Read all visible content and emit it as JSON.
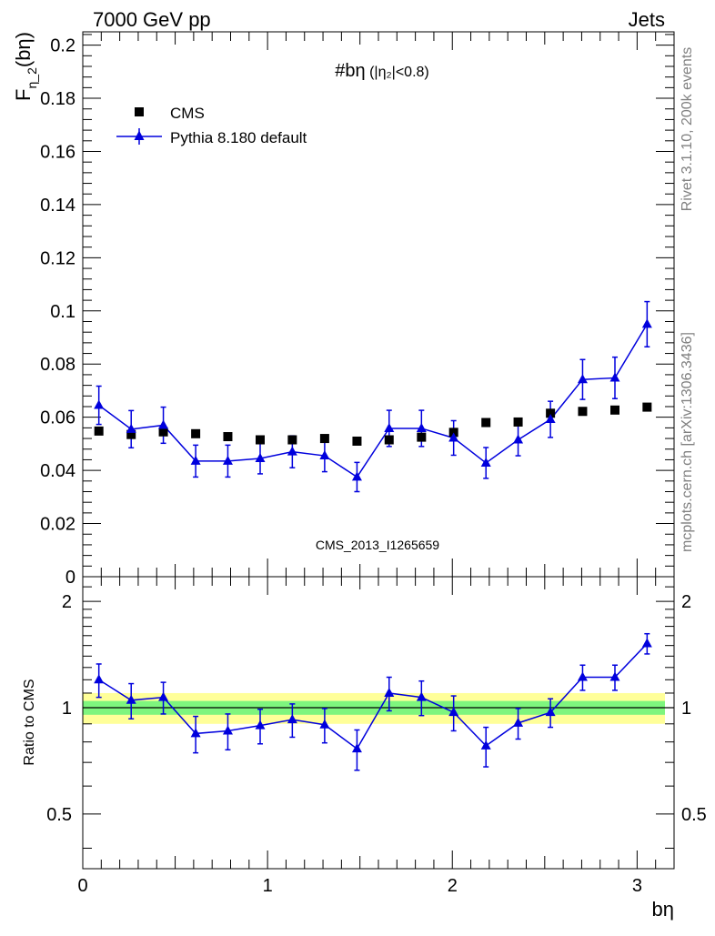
{
  "header": {
    "left": "7000 GeV pp",
    "right": "Jets"
  },
  "side_labels": {
    "rivet": "Rivet 3.1.10,  200k events",
    "mcplots": "mcplots.cern.ch [arXiv:1306.3436]"
  },
  "plot_title": {
    "main": "#bη",
    "detail": "(|η₂|<0.8)"
  },
  "watermark": "CMS_2013_I1265659",
  "colors": {
    "mc": "#0000dd",
    "band_inner": "#7ef57e",
    "band_outer": "#ffff99",
    "data": "#000000"
  },
  "chart_data": [
    {
      "type": "scatter",
      "panel": "main",
      "ylabel": "F_η_2(bη)",
      "ylabel_main": "F",
      "ylabel_sub": "η_2",
      "ylabel_tail": "(bη)",
      "xlim": [
        0,
        3.2
      ],
      "ylim": [
        0,
        0.205
      ],
      "yticks": [
        0,
        0.02,
        0.04,
        0.06,
        0.08,
        0.1,
        0.12,
        0.14,
        0.16,
        0.18,
        0.2
      ],
      "ytick_labels": [
        "0",
        "0.02",
        "0.04",
        "0.06",
        "0.08",
        "0.1",
        "0.12",
        "0.14",
        "0.16",
        "0.18",
        "0.2"
      ],
      "legend": {
        "placement": "top-left",
        "entries": [
          "CMS",
          "Pythia 8.180 default"
        ]
      },
      "x": [
        0.087,
        0.262,
        0.436,
        0.611,
        0.785,
        0.96,
        1.134,
        1.309,
        1.484,
        1.658,
        1.833,
        2.007,
        2.182,
        2.356,
        2.531,
        2.705,
        2.88,
        3.054
      ],
      "series": [
        {
          "name": "CMS",
          "values": [
            0.0548,
            0.0535,
            0.0545,
            0.0538,
            0.0527,
            0.0515,
            0.0515,
            0.052,
            0.051,
            0.0515,
            0.0525,
            0.0543,
            0.058,
            0.0582,
            0.0615,
            0.0622,
            0.0627,
            0.0638
          ]
        },
        {
          "name": "Pythia 8.180 default",
          "values": [
            0.0645,
            0.0555,
            0.057,
            0.0435,
            0.0435,
            0.0445,
            0.047,
            0.0455,
            0.0375,
            0.0558,
            0.0558,
            0.0522,
            0.0428,
            0.0515,
            0.0592,
            0.0742,
            0.0748,
            0.095
          ],
          "errors": [
            0.0072,
            0.007,
            0.0068,
            0.006,
            0.006,
            0.0058,
            0.006,
            0.006,
            0.0055,
            0.0068,
            0.0068,
            0.0065,
            0.0058,
            0.006,
            0.0068,
            0.0075,
            0.0078,
            0.0085
          ]
        }
      ]
    },
    {
      "type": "scatter",
      "panel": "ratio",
      "ylabel": "Ratio to CMS",
      "xlabel": "bη",
      "xlim": [
        0,
        3.2
      ],
      "ylim": [
        0.35,
        2.35
      ],
      "yscale": "log",
      "yticks": [
        0.5,
        1,
        2
      ],
      "ytick_labels": [
        "0.5",
        "1",
        "2"
      ],
      "xticks": [
        0,
        1,
        2,
        3
      ],
      "xtick_labels": [
        "0",
        "1",
        "2",
        "3"
      ],
      "reference": 1,
      "band_inner": 0.045,
      "band_outer": 0.1,
      "x": [
        0.087,
        0.262,
        0.436,
        0.611,
        0.785,
        0.96,
        1.134,
        1.309,
        1.484,
        1.658,
        1.833,
        2.007,
        2.182,
        2.356,
        2.531,
        2.705,
        2.88,
        3.054
      ],
      "series": [
        {
          "name": "Pythia 8.180 default",
          "values": [
            1.2,
            1.05,
            1.07,
            0.845,
            0.86,
            0.89,
            0.925,
            0.895,
            0.765,
            1.1,
            1.07,
            0.97,
            0.78,
            0.905,
            0.97,
            1.22,
            1.22,
            1.52
          ],
          "errors": [
            0.13,
            0.12,
            0.11,
            0.1,
            0.1,
            0.1,
            0.1,
            0.1,
            0.1,
            0.12,
            0.12,
            0.11,
            0.1,
            0.09,
            0.09,
            0.1,
            0.1,
            0.1
          ]
        }
      ]
    }
  ]
}
